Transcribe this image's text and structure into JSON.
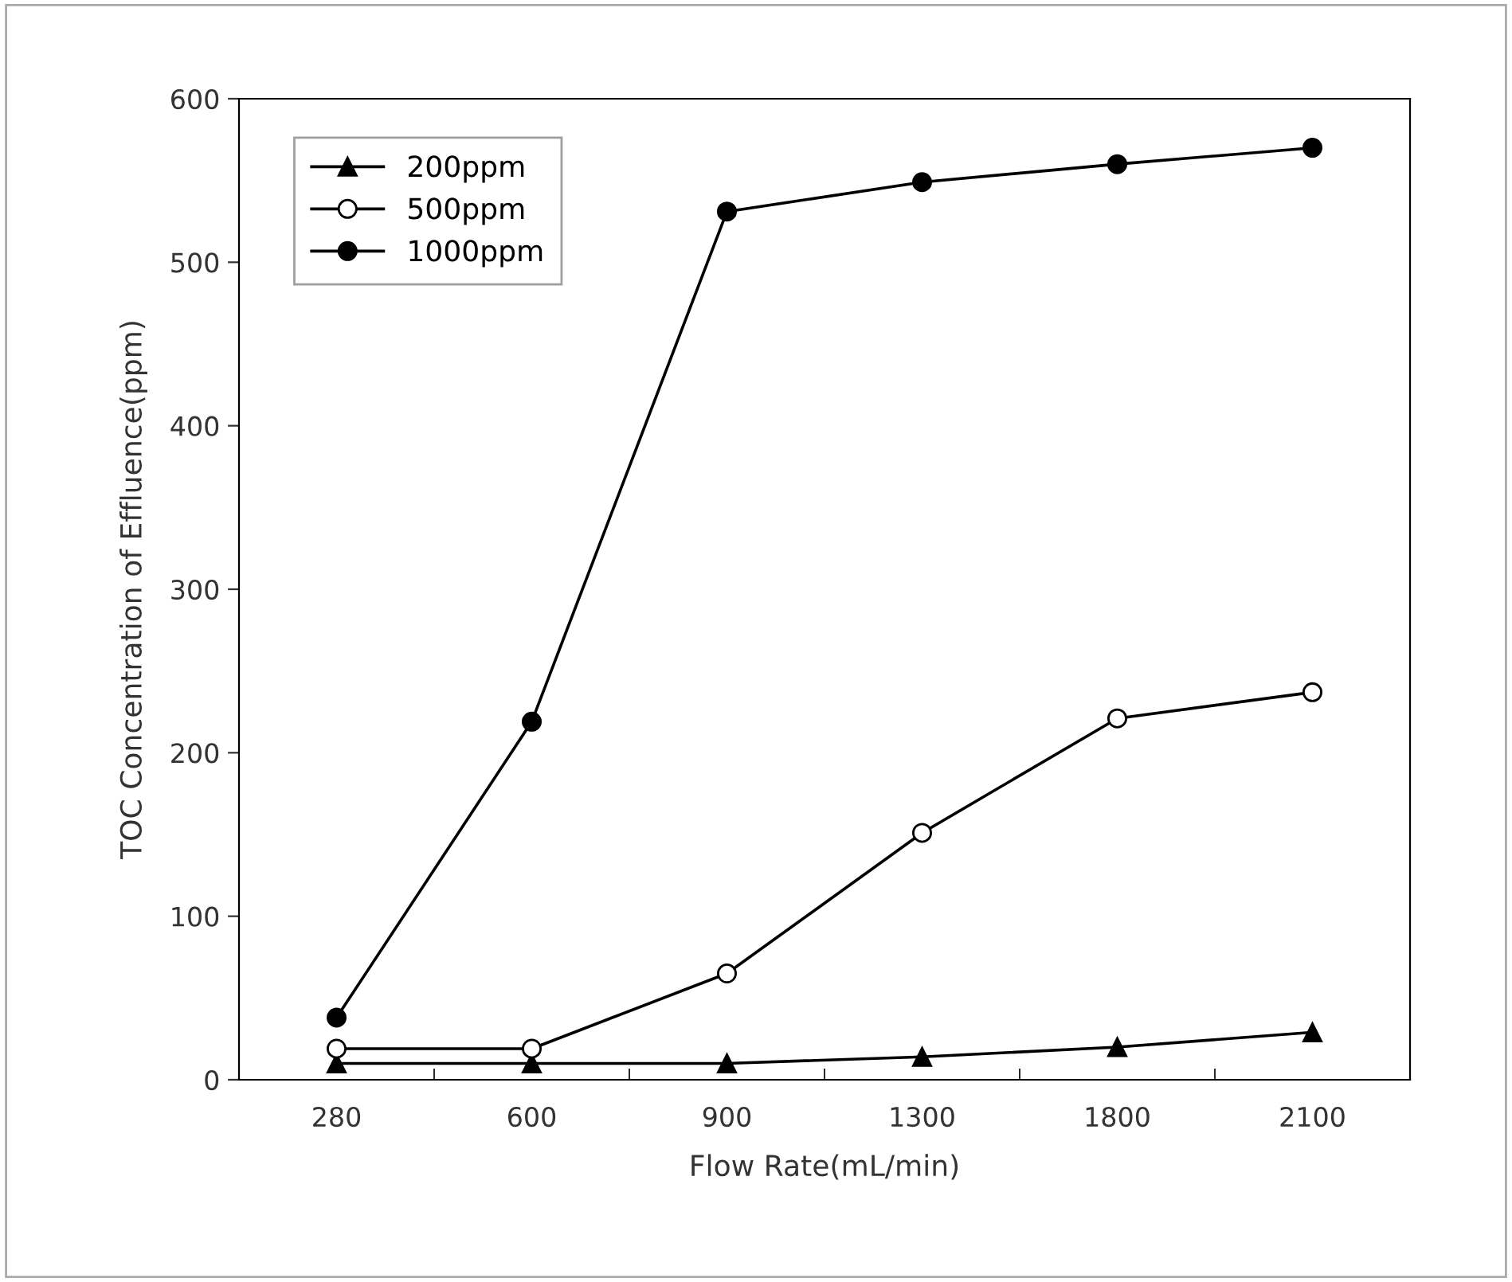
{
  "chart_data": {
    "type": "line",
    "xlabel": "Flow Rate(mL/min)",
    "ylabel": "TOC Concentration of Effluence(ppm)",
    "categories": [
      "280",
      "600",
      "900",
      "1300",
      "1800",
      "2100"
    ],
    "series": [
      {
        "name": "200ppm",
        "color": "#000000",
        "marker": "triangle",
        "values": [
          10,
          10,
          10,
          14,
          20,
          29
        ]
      },
      {
        "name": "500ppm",
        "color": "#000000",
        "marker": "circle_open",
        "values": [
          19,
          19,
          65,
          151,
          221,
          237
        ]
      },
      {
        "name": "1000ppm",
        "color": "#000000",
        "marker": "circle",
        "values": [
          38,
          219,
          531,
          549,
          560,
          570
        ]
      }
    ],
    "ylim": [
      0,
      600
    ],
    "yticks": [
      0,
      100,
      200,
      300,
      400,
      500,
      600
    ],
    "grid": false,
    "legend": "top left",
    "line_style": "solid"
  }
}
